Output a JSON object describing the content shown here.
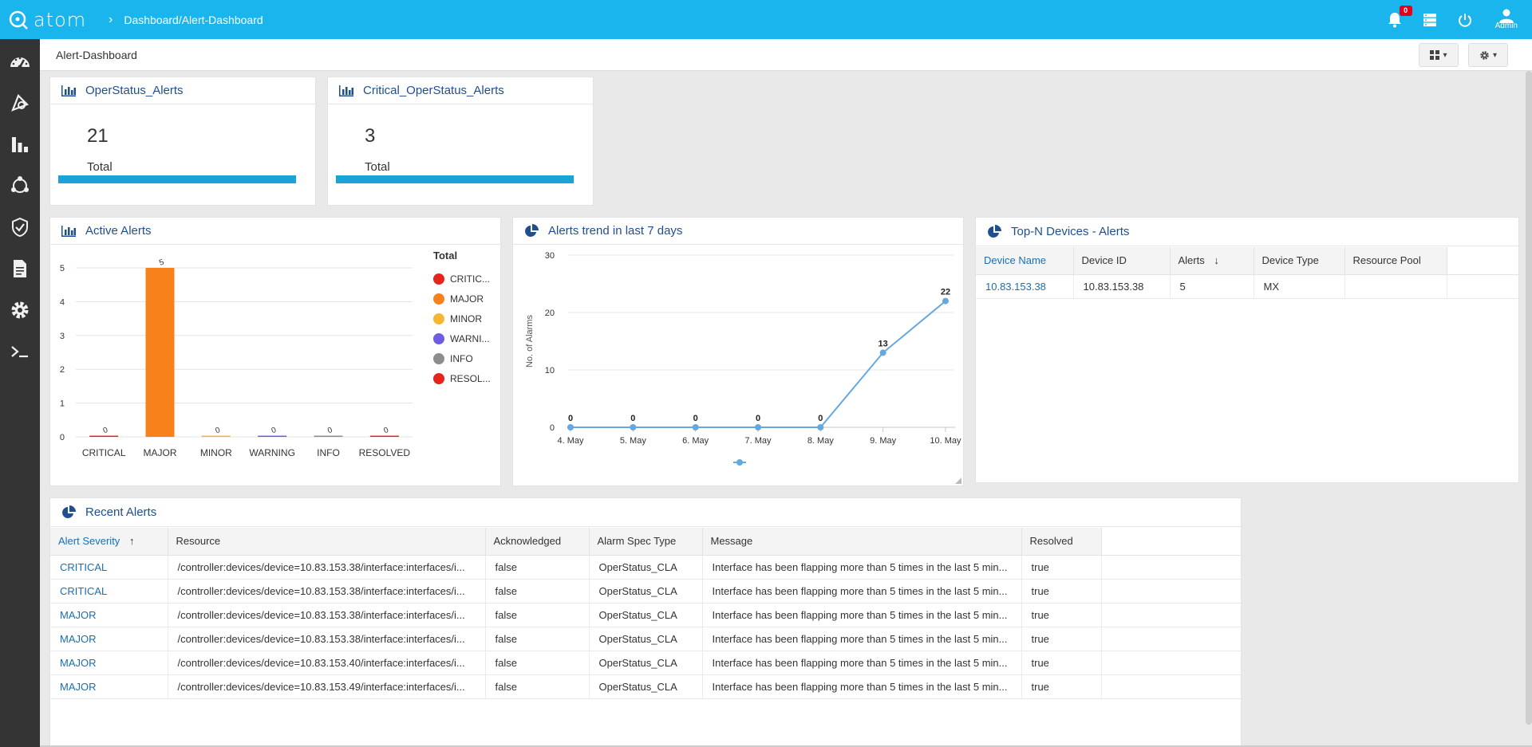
{
  "app": {
    "name": "atom",
    "breadcrumb": "Dashboard/Alert-Dashboard",
    "notification_count": "0",
    "user_label": "Admin"
  },
  "page": {
    "title": "Alert-Dashboard"
  },
  "sidebar": {
    "items": [
      {
        "icon": "dashboard-gauge-icon"
      },
      {
        "icon": "resource-manager-icon"
      },
      {
        "icon": "analytics-bar-chart-icon"
      },
      {
        "icon": "topology-network-icon"
      },
      {
        "icon": "security-shield-check-icon"
      },
      {
        "icon": "document-file-icon"
      },
      {
        "icon": "settings-gear-icon"
      },
      {
        "icon": "terminal-prompt-icon"
      }
    ]
  },
  "cards": {
    "operstatus": {
      "title": "OperStatus_Alerts",
      "value": "21",
      "label": "Total"
    },
    "critical": {
      "title": "Critical_OperStatus_Alerts",
      "value": "3",
      "label": "Total"
    }
  },
  "active_alerts": {
    "title": "Active Alerts",
    "legend_title": "Total",
    "legend": [
      {
        "label": "CRITIC...",
        "color": "#e8231c"
      },
      {
        "label": "MAJOR",
        "color": "#f7821b"
      },
      {
        "label": "MINOR",
        "color": "#f5b731"
      },
      {
        "label": "WARNI...",
        "color": "#6f5ce4"
      },
      {
        "label": "INFO",
        "color": "#8d8d8d"
      },
      {
        "label": "RESOL...",
        "color": "#e8231c"
      }
    ]
  },
  "alerts_trend": {
    "title": "Alerts trend in last 7 days"
  },
  "top_devices": {
    "title": "Top-N Devices - Alerts",
    "columns": [
      "Device Name",
      "Device ID",
      "Alerts",
      "Device Type",
      "Resource Pool"
    ],
    "rows": [
      {
        "name": "10.83.153.38",
        "id": "10.83.153.38",
        "alerts": "5",
        "type": "MX",
        "pool": ""
      }
    ]
  },
  "recent_alerts": {
    "title": "Recent Alerts",
    "columns": [
      "Alert Severity",
      "Resource",
      "Acknowledged",
      "Alarm Spec Type",
      "Message",
      "Resolved"
    ],
    "rows": [
      {
        "severity": "CRITICAL",
        "resource": "/controller:devices/device=10.83.153.38/interface:interfaces/i...",
        "ack": "false",
        "spec": "OperStatus_CLA",
        "message": "Interface has been flapping more than 5 times in the last 5 min...",
        "resolved": "true"
      },
      {
        "severity": "CRITICAL",
        "resource": "/controller:devices/device=10.83.153.38/interface:interfaces/i...",
        "ack": "false",
        "spec": "OperStatus_CLA",
        "message": "Interface has been flapping more than 5 times in the last 5 min...",
        "resolved": "true"
      },
      {
        "severity": "MAJOR",
        "resource": "/controller:devices/device=10.83.153.38/interface:interfaces/i...",
        "ack": "false",
        "spec": "OperStatus_CLA",
        "message": "Interface has been flapping more than 5 times in the last 5 min...",
        "resolved": "true"
      },
      {
        "severity": "MAJOR",
        "resource": "/controller:devices/device=10.83.153.38/interface:interfaces/i...",
        "ack": "false",
        "spec": "OperStatus_CLA",
        "message": "Interface has been flapping more than 5 times in the last 5 min...",
        "resolved": "true"
      },
      {
        "severity": "MAJOR",
        "resource": "/controller:devices/device=10.83.153.40/interface:interfaces/i...",
        "ack": "false",
        "spec": "OperStatus_CLA",
        "message": "Interface has been flapping more than 5 times in the last 5 min...",
        "resolved": "true"
      },
      {
        "severity": "MAJOR",
        "resource": "/controller:devices/device=10.83.153.49/interface:interfaces/i...",
        "ack": "false",
        "spec": "OperStatus_CLA",
        "message": "Interface has been flapping more than 5 times in the last 5 min...",
        "resolved": "true"
      }
    ]
  },
  "chart_data": [
    {
      "type": "bar",
      "title": "Active Alerts",
      "categories": [
        "CRITICAL",
        "MAJOR",
        "MINOR",
        "WARNING",
        "INFO",
        "RESOLVED"
      ],
      "values": [
        0,
        5,
        0,
        0,
        0,
        0
      ],
      "colors": [
        "#e8231c",
        "#f7821b",
        "#f5b731",
        "#6f5ce4",
        "#8d8d8d",
        "#e8231c"
      ],
      "ylim": [
        0,
        5
      ],
      "yticks": [
        0,
        1,
        2,
        3,
        4,
        5
      ],
      "grid": true,
      "legend": "right"
    },
    {
      "type": "line",
      "title": "Alerts trend in last 7 days",
      "x": [
        "4. May",
        "5. May",
        "6. May",
        "7. May",
        "8. May",
        "9. May",
        "10. May"
      ],
      "values": [
        0,
        0,
        0,
        0,
        0,
        13,
        22
      ],
      "ylabel": "No. of Alarms",
      "ylim": [
        0,
        30
      ],
      "yticks": [
        0,
        10,
        20,
        30
      ],
      "color": "#64a8e0",
      "grid": true,
      "legend": "bottom"
    }
  ]
}
